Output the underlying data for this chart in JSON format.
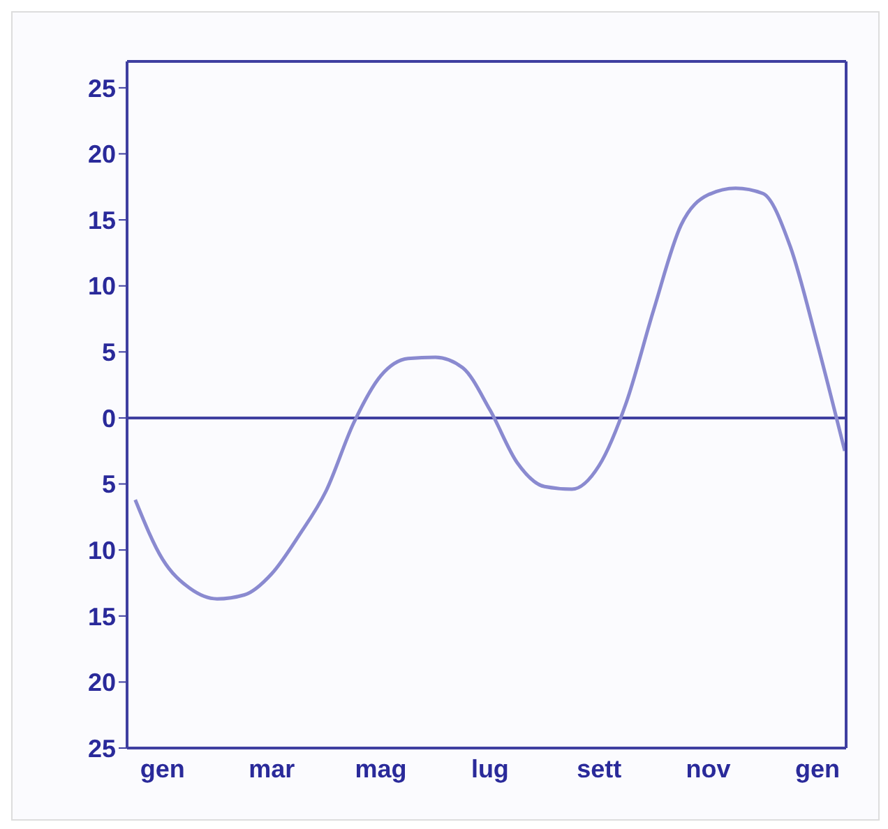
{
  "chart_data": {
    "type": "line",
    "color": "#8a8ad0",
    "categories": [
      null,
      "gen",
      null,
      null,
      null,
      "mar",
      null,
      null,
      null,
      "mag",
      null,
      null,
      null,
      "lug",
      null,
      null,
      null,
      "sett",
      null,
      null,
      null,
      "nov",
      null,
      null,
      null,
      "gen",
      null
    ],
    "values": [
      -6.2,
      -10.7,
      -12.9,
      -13.7,
      -13.4,
      -11.8,
      -8.9,
      -5.5,
      -0.4,
      3.2,
      4.5,
      4.6,
      3.8,
      0.6,
      -3.4,
      -5.2,
      -5.4,
      -3.6,
      1.2,
      8.2,
      14.6,
      16.9,
      17.4,
      17.0,
      13,
      5.6,
      -2.5
    ],
    "ylim": [
      -25,
      27
    ],
    "yticks": [
      {
        "value": -25,
        "label": "25"
      },
      {
        "value": -20,
        "label": "20"
      },
      {
        "value": -15,
        "label": "15"
      },
      {
        "value": -10,
        "label": "10"
      },
      {
        "value": -5,
        "label": "5"
      },
      0,
      5,
      10,
      15,
      20,
      25
    ],
    "ref_lines": [
      {
        "axis": "y",
        "value": 0,
        "color": "#3f3fa0"
      }
    ],
    "grid": false,
    "legend": false,
    "marker": "none",
    "line_style": "solid"
  }
}
